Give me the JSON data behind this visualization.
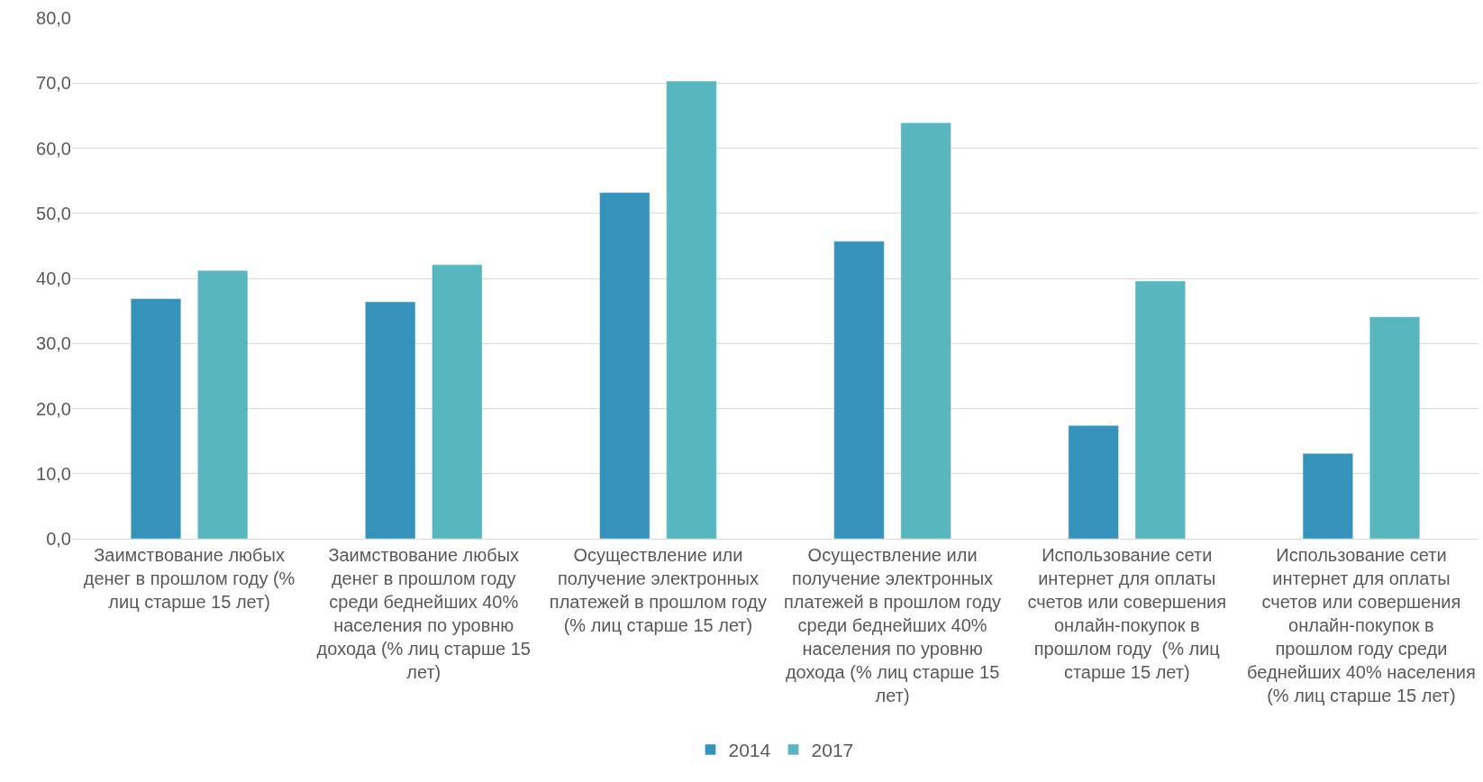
{
  "chart_data": {
    "type": "bar",
    "categories": [
      "Заимствование любых денег в прошлом году (% лиц старше 15 лет)",
      "Заимствование любых денег в прошлом году среди беднейших 40% населения по уровню дохода (% лиц старше 15 лет)",
      "Осуществление или получение электронных платежей в прошлом году (% лиц старше 15 лет)",
      "Осуществление или получение электронных платежей в прошлом году среди беднейших 40% населения по уровню дохода (% лиц старше 15 лет)",
      "Использование сети интернет для оплаты счетов или совершения онлайн-покупок в прошлом году  (% лиц старше 15 лет)",
      "Использование сети интернет для оплаты счетов или совершения онлайн-покупок в прошлом году среди беднейших 40% населения (% лиц старше 15 лет)"
    ],
    "series": [
      {
        "name": "2014",
        "color": "#3593bb",
        "values": [
          36.9,
          36.4,
          53.2,
          45.7,
          17.4,
          13.1
        ]
      },
      {
        "name": "2017",
        "color": "#58b6bf",
        "values": [
          41.2,
          42.1,
          70.3,
          63.9,
          39.6,
          34.1
        ]
      }
    ],
    "ylim": [
      0,
      80
    ],
    "yticks": [
      {
        "value": 0,
        "label": "0,0"
      },
      {
        "value": 10,
        "label": "10,0"
      },
      {
        "value": 20,
        "label": "20,0"
      },
      {
        "value": 30,
        "label": "30,0"
      },
      {
        "value": 40,
        "label": "40,0"
      },
      {
        "value": 50,
        "label": "50,0"
      },
      {
        "value": 60,
        "label": "60,0"
      },
      {
        "value": 70,
        "label": "70,0"
      },
      {
        "value": 80,
        "label": "80,0"
      }
    ],
    "grid": "y",
    "legend": "bottom"
  }
}
